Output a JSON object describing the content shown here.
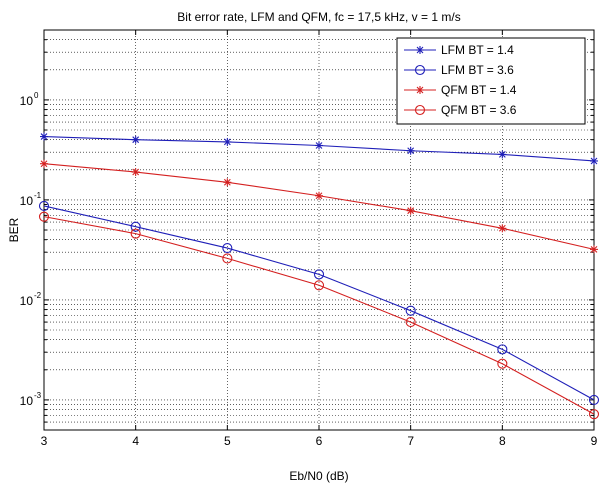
{
  "chart_data": {
    "type": "line",
    "title": "Bit error rate, LFM and QFM, fc = 17,5 kHz, v = 1 m/s",
    "xlabel": "Eb/N0 (dB)",
    "ylabel": "BER",
    "x": [
      3,
      4,
      5,
      6,
      7,
      8,
      9
    ],
    "xlim": [
      3,
      9
    ],
    "ylim": [
      0.0005,
      5
    ],
    "yscale": "log",
    "grid": true,
    "legend": "top-right",
    "x_ticks": [
      "3",
      "4",
      "5",
      "6",
      "7",
      "8",
      "9"
    ],
    "y_ticks": [
      {
        "base": "10",
        "exp": "0",
        "value": 1
      },
      {
        "base": "10",
        "exp": "-1",
        "value": 0.1
      },
      {
        "base": "10",
        "exp": "-2",
        "value": 0.01
      },
      {
        "base": "10",
        "exp": "-3",
        "value": 0.001
      }
    ],
    "series": [
      {
        "name": "LFM BT = 1.4",
        "color": "#1f1fb8",
        "marker": "star",
        "values": [
          0.43,
          0.4,
          0.38,
          0.35,
          0.31,
          0.285,
          0.245
        ]
      },
      {
        "name": "LFM BT = 3.6",
        "color": "#1f1fb8",
        "marker": "circle",
        "values": [
          0.087,
          0.054,
          0.033,
          0.018,
          0.0078,
          0.0032,
          0.001
        ]
      },
      {
        "name": "QFM BT = 1.4",
        "color": "#d42020",
        "marker": "star",
        "values": [
          0.23,
          0.19,
          0.15,
          0.11,
          0.078,
          0.052,
          0.032
        ]
      },
      {
        "name": "QFM BT = 3.6",
        "color": "#d42020",
        "marker": "circle",
        "values": [
          0.068,
          0.046,
          0.026,
          0.014,
          0.006,
          0.0023,
          0.00072
        ]
      }
    ]
  }
}
